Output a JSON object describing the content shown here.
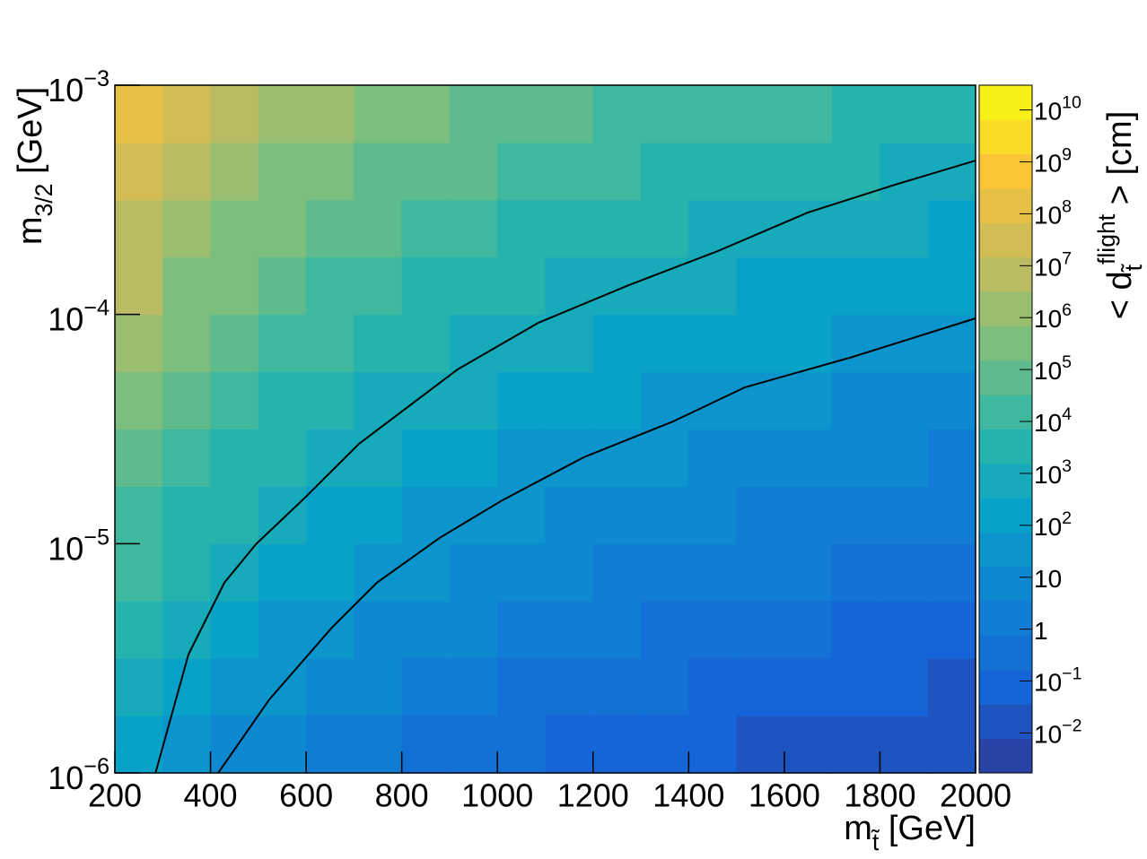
{
  "chart_data": {
    "type": "heatmap",
    "x_label": [
      {
        "text": "m"
      },
      {
        "text": "t̃",
        "shift": "sub"
      },
      {
        "text": " [GeV]"
      }
    ],
    "y_label": [
      {
        "text": "m"
      },
      {
        "text": "3/2",
        "shift": "sub"
      },
      {
        "text": " [GeV]"
      }
    ],
    "z_label": [
      {
        "text": "< d"
      },
      {
        "text": "t̃",
        "shift": "sub"
      },
      {
        "text": "flight",
        "shift": "super"
      },
      {
        "text": " > [cm]"
      }
    ],
    "xlim": [
      200,
      2000
    ],
    "xticks": [
      200,
      400,
      600,
      800,
      1000,
      1200,
      1400,
      1600,
      1800,
      2000
    ],
    "ylim": [
      1e-06,
      0.001
    ],
    "yscale": "log",
    "yticks": [
      {
        "value": 1e-06,
        "label": "10",
        "sup": "−6"
      },
      {
        "value": 1e-05,
        "label": "10",
        "sup": "−5"
      },
      {
        "value": 0.0001,
        "label": "10",
        "sup": "−4"
      },
      {
        "value": 0.001,
        "label": "10",
        "sup": "−3"
      }
    ],
    "zlim": [
      0.0017,
      30000000000
    ],
    "zscale": "log",
    "zticks": [
      {
        "value": 0.01,
        "label": "10",
        "sup": "−2"
      },
      {
        "value": 0.1,
        "label": "10",
        "sup": "−1"
      },
      1,
      10,
      {
        "value": 100,
        "label": "10",
        "sup": "2"
      },
      {
        "value": 1000,
        "label": "10",
        "sup": "3"
      },
      {
        "value": 10000,
        "label": "10",
        "sup": "4"
      },
      {
        "value": 100000,
        "label": "10",
        "sup": "5"
      },
      {
        "value": 1000000,
        "label": "10",
        "sup": "6"
      },
      {
        "value": 10000000,
        "label": "10",
        "sup": "7"
      },
      {
        "value": 100000000,
        "label": "10",
        "sup": "8"
      },
      {
        "value": 1000000000,
        "label": "10",
        "sup": "9"
      },
      {
        "value": 10000000000,
        "label": "10",
        "sup": "10"
      }
    ],
    "contour_levels": 20,
    "colormap": [
      "#2b3a9a",
      "#1565d8",
      "#0f82d3",
      "#08a2c8",
      "#2eb6a6",
      "#7cbe7d",
      "#c8bb5c",
      "#fbc537",
      "#f8fb10"
    ],
    "x_edges": [
      200,
      300,
      400,
      500,
      600,
      700,
      800,
      900,
      1000,
      1100,
      1200,
      1300,
      1400,
      1500,
      1600,
      1700,
      1800,
      1900,
      2000
    ],
    "y_edges": [
      1e-06,
      1.778e-06,
      3.162e-06,
      5.623e-06,
      1e-05,
      1.778e-05,
      3.162e-05,
      5.623e-05,
      0.0001,
      0.0001778,
      0.0003162,
      0.0005623,
      0.001
    ],
    "z": [
      [
        320,
        50,
        16,
        6.3,
        2.5,
        1.26,
        0.63,
        0.4,
        0.2,
        0.126,
        0.1,
        0.063,
        0.04,
        0.032,
        0.025,
        0.016,
        0.0126,
        0.01
      ],
      [
        1000,
        160,
        50,
        20,
        8,
        4,
        2,
        1.26,
        0.63,
        0.4,
        0.32,
        0.2,
        0.126,
        0.1,
        0.08,
        0.05,
        0.04,
        0.032
      ],
      [
        3200,
        500,
        160,
        63,
        25,
        12.6,
        6.3,
        4,
        2,
        1.26,
        1,
        0.63,
        0.4,
        0.32,
        0.25,
        0.16,
        0.126,
        0.1
      ],
      [
        10000,
        1600,
        500,
        200,
        80,
        40,
        20,
        12.6,
        6.3,
        4,
        3.2,
        2,
        1.26,
        1,
        0.8,
        0.5,
        0.4,
        0.32
      ],
      [
        32000,
        5000,
        1600,
        630,
        250,
        126,
        63,
        40,
        20,
        12.6,
        10,
        6.3,
        4,
        3.2,
        2.5,
        1.6,
        1.26,
        1
      ],
      [
        100000,
        16000,
        5000,
        2000,
        800,
        400,
        200,
        126,
        63,
        40,
        32,
        20,
        12.6,
        10,
        8,
        5,
        4,
        3.2
      ],
      [
        320000,
        50000,
        16000,
        6300,
        2500,
        1260,
        630,
        400,
        200,
        126,
        100,
        63,
        40,
        32,
        25,
        16,
        12.6,
        10
      ],
      [
        1000000,
        160000,
        50000,
        20000,
        8000,
        4000,
        2000,
        1260,
        630,
        400,
        320,
        200,
        126,
        100,
        80,
        50,
        40,
        32
      ],
      [
        3200000,
        500000,
        160000,
        63000,
        25000,
        12600,
        6300,
        4000,
        2000,
        1260,
        1000,
        630,
        400,
        320,
        250,
        160,
        126,
        100
      ],
      [
        10000000,
        1600000,
        500000,
        200000,
        80000,
        40000,
        20000,
        12600,
        6300,
        4000,
        3200,
        2000,
        1260,
        1000,
        800,
        500,
        400,
        320
      ],
      [
        32000000,
        5000000,
        1600000,
        630000,
        250000,
        126000,
        63000,
        40000,
        20000,
        12600,
        10000,
        6300,
        4000,
        3200,
        2500,
        1600,
        1260,
        1000
      ],
      [
        100000000,
        16000000,
        5000000,
        2000000,
        800000,
        400000,
        200000,
        126000,
        63000,
        40000,
        32000,
        20000,
        12600,
        10000,
        8000,
        5000,
        4000,
        3200
      ]
    ],
    "contours": [
      {
        "color": "#000000",
        "x": [
          285,
          354,
          429,
          495,
          598,
          711,
          917,
          1086,
          1274,
          1461,
          1649,
          1837,
          2000
        ],
        "y": [
          1e-06,
          3.29e-06,
          6.76e-06,
          9.95e-06,
          1.59e-05,
          2.73e-05,
          5.76e-05,
          9.2e-05,
          0.000134,
          0.000189,
          0.000278,
          0.000371,
          0.000469
        ]
      },
      {
        "color": "#000000",
        "x": [
          416,
          523,
          654,
          748,
          879,
          1011,
          1180,
          1367,
          1518,
          1743,
          2000
        ],
        "y": [
          1e-06,
          2.09e-06,
          4.31e-06,
          6.76e-06,
          1.06e-05,
          1.55e-05,
          2.38e-05,
          3.41e-05,
          4.81e-05,
          6.53e-05,
          9.62e-05
        ]
      }
    ]
  }
}
